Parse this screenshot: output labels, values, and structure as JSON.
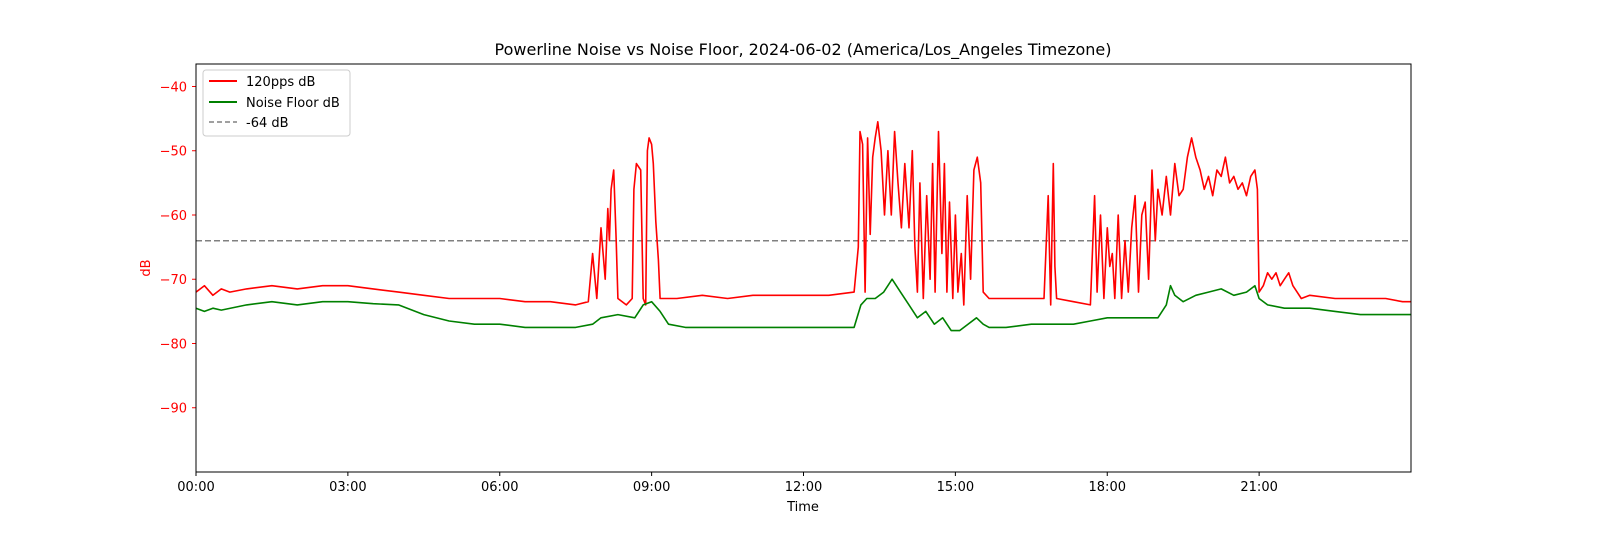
{
  "chart_data": {
    "type": "line",
    "title": "Powerline Noise vs Noise Floor, 2024-06-02 (America/Los_Angeles Timezone)",
    "xlabel": "Time",
    "ylabel": "dB",
    "xlim": [
      "00:00",
      "24:00"
    ],
    "ylim": [
      -100,
      -36.5
    ],
    "x_ticks": [
      "00:00",
      "03:00",
      "06:00",
      "09:00",
      "12:00",
      "15:00",
      "18:00",
      "21:00"
    ],
    "y_ticks": [
      -40,
      -50,
      -60,
      -70,
      -80,
      -90
    ],
    "y_tick_labels": [
      "−40",
      "−50",
      "−60",
      "−70",
      "−80",
      "−90"
    ],
    "grid": false,
    "legend_position": "top-left",
    "colors": {
      "red": "#ff0000",
      "green": "#008000",
      "gray": "#808080",
      "ylabel": "#ff0000"
    },
    "reference_line": {
      "name": "-64 dB",
      "y": -64,
      "style": "dashed"
    },
    "series": [
      {
        "name": "120pps dB",
        "color": "#ff0000",
        "points": [
          [
            "00:00",
            -72
          ],
          [
            "00:10",
            -71
          ],
          [
            "00:20",
            -72.5
          ],
          [
            "00:30",
            -71.5
          ],
          [
            "00:40",
            -72
          ],
          [
            "01:00",
            -71.5
          ],
          [
            "01:30",
            -71
          ],
          [
            "02:00",
            -71.5
          ],
          [
            "02:30",
            -71
          ],
          [
            "03:00",
            -71
          ],
          [
            "03:30",
            -71.5
          ],
          [
            "04:00",
            -72
          ],
          [
            "04:30",
            -72.5
          ],
          [
            "05:00",
            -73
          ],
          [
            "05:30",
            -73
          ],
          [
            "06:00",
            -73
          ],
          [
            "06:30",
            -73.5
          ],
          [
            "07:00",
            -73.5
          ],
          [
            "07:30",
            -74
          ],
          [
            "07:45",
            -73.5
          ],
          [
            "07:50",
            -66
          ],
          [
            "07:55",
            -73
          ],
          [
            "08:00",
            -62
          ],
          [
            "08:05",
            -70
          ],
          [
            "08:08",
            -59
          ],
          [
            "08:10",
            -64
          ],
          [
            "08:12",
            -56
          ],
          [
            "08:15",
            -53
          ],
          [
            "08:18",
            -64
          ],
          [
            "08:20",
            -73
          ],
          [
            "08:30",
            -74
          ],
          [
            "08:37",
            -73
          ],
          [
            "08:39",
            -56
          ],
          [
            "08:42",
            -52
          ],
          [
            "08:47",
            -53
          ],
          [
            "08:50",
            -73
          ],
          [
            "08:53",
            -74
          ],
          [
            "08:55",
            -50
          ],
          [
            "08:57",
            -48
          ],
          [
            "09:00",
            -49
          ],
          [
            "09:02",
            -52
          ],
          [
            "09:05",
            -61
          ],
          [
            "09:08",
            -67
          ],
          [
            "09:10",
            -73
          ],
          [
            "09:30",
            -73
          ],
          [
            "10:00",
            -72.5
          ],
          [
            "10:30",
            -73
          ],
          [
            "11:00",
            -72.5
          ],
          [
            "11:30",
            -72.5
          ],
          [
            "12:00",
            -72.5
          ],
          [
            "12:30",
            -72.5
          ],
          [
            "13:00",
            -72
          ],
          [
            "13:05",
            -65
          ],
          [
            "13:07",
            -47
          ],
          [
            "13:10",
            -49
          ],
          [
            "13:13",
            -72
          ],
          [
            "13:16",
            -48
          ],
          [
            "13:19",
            -63
          ],
          [
            "13:22",
            -51
          ],
          [
            "13:25",
            -48
          ],
          [
            "13:28",
            -45.5
          ],
          [
            "13:32",
            -50
          ],
          [
            "13:36",
            -60
          ],
          [
            "13:40",
            -50
          ],
          [
            "13:44",
            -60
          ],
          [
            "13:48",
            -47
          ],
          [
            "13:52",
            -55
          ],
          [
            "13:56",
            -62
          ],
          [
            "14:00",
            -52
          ],
          [
            "14:05",
            -62
          ],
          [
            "14:09",
            -50
          ],
          [
            "14:12",
            -65
          ],
          [
            "14:15",
            -72
          ],
          [
            "14:18",
            -55
          ],
          [
            "14:22",
            -73
          ],
          [
            "14:26",
            -57
          ],
          [
            "14:30",
            -70
          ],
          [
            "14:33",
            -52
          ],
          [
            "14:36",
            -72
          ],
          [
            "14:40",
            -47
          ],
          [
            "14:44",
            -66
          ],
          [
            "14:47",
            -52
          ],
          [
            "14:50",
            -72
          ],
          [
            "14:53",
            -58
          ],
          [
            "14:57",
            -73
          ],
          [
            "15:00",
            -60
          ],
          [
            "15:03",
            -72
          ],
          [
            "15:07",
            -66
          ],
          [
            "15:10",
            -74
          ],
          [
            "15:14",
            -57
          ],
          [
            "15:18",
            -70
          ],
          [
            "15:22",
            -53
          ],
          [
            "15:26",
            -51
          ],
          [
            "15:30",
            -55
          ],
          [
            "15:33",
            -72
          ],
          [
            "15:40",
            -73
          ],
          [
            "16:00",
            -73
          ],
          [
            "16:30",
            -73
          ],
          [
            "16:45",
            -73
          ],
          [
            "16:50",
            -57
          ],
          [
            "16:53",
            -74
          ],
          [
            "16:56",
            -52
          ],
          [
            "16:58",
            -68
          ],
          [
            "17:00",
            -73
          ],
          [
            "17:20",
            -73.5
          ],
          [
            "17:40",
            -74
          ],
          [
            "17:45",
            -57
          ],
          [
            "17:48",
            -72
          ],
          [
            "17:52",
            -60
          ],
          [
            "17:56",
            -73
          ],
          [
            "18:00",
            -62
          ],
          [
            "18:03",
            -68
          ],
          [
            "18:06",
            -66
          ],
          [
            "18:09",
            -73
          ],
          [
            "18:13",
            -60
          ],
          [
            "18:17",
            -73
          ],
          [
            "18:21",
            -64
          ],
          [
            "18:25",
            -72
          ],
          [
            "18:29",
            -62
          ],
          [
            "18:33",
            -57
          ],
          [
            "18:37",
            -72
          ],
          [
            "18:41",
            -60
          ],
          [
            "18:45",
            -58
          ],
          [
            "18:49",
            -70
          ],
          [
            "18:53",
            -53
          ],
          [
            "18:57",
            -64
          ],
          [
            "19:00",
            -56
          ],
          [
            "19:05",
            -60
          ],
          [
            "19:10",
            -54
          ],
          [
            "19:15",
            -60
          ],
          [
            "19:20",
            -52
          ],
          [
            "19:25",
            -57
          ],
          [
            "19:30",
            -56
          ],
          [
            "19:35",
            -51
          ],
          [
            "19:40",
            -48
          ],
          [
            "19:45",
            -51
          ],
          [
            "19:50",
            -53
          ],
          [
            "19:55",
            -56
          ],
          [
            "20:00",
            -54
          ],
          [
            "20:05",
            -57
          ],
          [
            "20:10",
            -53
          ],
          [
            "20:15",
            -54
          ],
          [
            "20:20",
            -51
          ],
          [
            "20:25",
            -55
          ],
          [
            "20:30",
            -54
          ],
          [
            "20:35",
            -56
          ],
          [
            "20:40",
            -55
          ],
          [
            "20:45",
            -57
          ],
          [
            "20:50",
            -54
          ],
          [
            "20:55",
            -53
          ],
          [
            "20:58",
            -56
          ],
          [
            "21:00",
            -72
          ],
          [
            "21:05",
            -71
          ],
          [
            "21:10",
            -69
          ],
          [
            "21:15",
            -70
          ],
          [
            "21:20",
            -69
          ],
          [
            "21:25",
            -71
          ],
          [
            "21:30",
            -70
          ],
          [
            "21:35",
            -69
          ],
          [
            "21:40",
            -71
          ],
          [
            "21:45",
            -72
          ],
          [
            "21:50",
            -73
          ],
          [
            "22:00",
            -72.5
          ],
          [
            "22:30",
            -73
          ],
          [
            "23:00",
            -73
          ],
          [
            "23:30",
            -73
          ],
          [
            "23:50",
            -73.5
          ],
          [
            "24:00",
            -73.5
          ]
        ]
      },
      {
        "name": "Noise Floor dB",
        "color": "#008000",
        "points": [
          [
            "00:00",
            -74.5
          ],
          [
            "00:10",
            -75
          ],
          [
            "00:20",
            -74.5
          ],
          [
            "00:30",
            -74.8
          ],
          [
            "01:00",
            -74
          ],
          [
            "01:30",
            -73.5
          ],
          [
            "02:00",
            -74
          ],
          [
            "02:30",
            -73.5
          ],
          [
            "03:00",
            -73.5
          ],
          [
            "03:30",
            -73.8
          ],
          [
            "04:00",
            -74
          ],
          [
            "04:30",
            -75.5
          ],
          [
            "05:00",
            -76.5
          ],
          [
            "05:30",
            -77
          ],
          [
            "06:00",
            -77
          ],
          [
            "06:30",
            -77.5
          ],
          [
            "07:00",
            -77.5
          ],
          [
            "07:30",
            -77.5
          ],
          [
            "07:50",
            -77
          ],
          [
            "08:00",
            -76
          ],
          [
            "08:20",
            -75.5
          ],
          [
            "08:40",
            -76
          ],
          [
            "08:50",
            -74
          ],
          [
            "09:00",
            -73.5
          ],
          [
            "09:10",
            -75
          ],
          [
            "09:20",
            -77
          ],
          [
            "09:40",
            -77.5
          ],
          [
            "10:00",
            -77.5
          ],
          [
            "10:30",
            -77.5
          ],
          [
            "11:00",
            -77.5
          ],
          [
            "11:30",
            -77.5
          ],
          [
            "12:00",
            -77.5
          ],
          [
            "12:30",
            -77.5
          ],
          [
            "13:00",
            -77.5
          ],
          [
            "13:08",
            -74
          ],
          [
            "13:15",
            -73
          ],
          [
            "13:25",
            -73
          ],
          [
            "13:35",
            -72
          ],
          [
            "13:45",
            -70
          ],
          [
            "13:55",
            -72
          ],
          [
            "14:05",
            -74
          ],
          [
            "14:15",
            -76
          ],
          [
            "14:25",
            -75
          ],
          [
            "14:35",
            -77
          ],
          [
            "14:45",
            -76
          ],
          [
            "14:55",
            -78
          ],
          [
            "15:05",
            -78
          ],
          [
            "15:15",
            -77
          ],
          [
            "15:25",
            -76
          ],
          [
            "15:33",
            -77
          ],
          [
            "15:40",
            -77.5
          ],
          [
            "16:00",
            -77.5
          ],
          [
            "16:30",
            -77
          ],
          [
            "17:00",
            -77
          ],
          [
            "17:20",
            -77
          ],
          [
            "17:40",
            -76.5
          ],
          [
            "18:00",
            -76
          ],
          [
            "18:30",
            -76
          ],
          [
            "19:00",
            -76
          ],
          [
            "19:10",
            -74
          ],
          [
            "19:15",
            -71
          ],
          [
            "19:20",
            -72.5
          ],
          [
            "19:30",
            -73.5
          ],
          [
            "19:45",
            -72.5
          ],
          [
            "20:00",
            -72
          ],
          [
            "20:15",
            -71.5
          ],
          [
            "20:30",
            -72.5
          ],
          [
            "20:45",
            -72
          ],
          [
            "20:55",
            -71
          ],
          [
            "21:00",
            -73
          ],
          [
            "21:10",
            -74
          ],
          [
            "21:30",
            -74.5
          ],
          [
            "22:00",
            -74.5
          ],
          [
            "22:30",
            -75
          ],
          [
            "23:00",
            -75.5
          ],
          [
            "23:30",
            -75.5
          ],
          [
            "24:00",
            -75.5
          ]
        ]
      }
    ]
  }
}
